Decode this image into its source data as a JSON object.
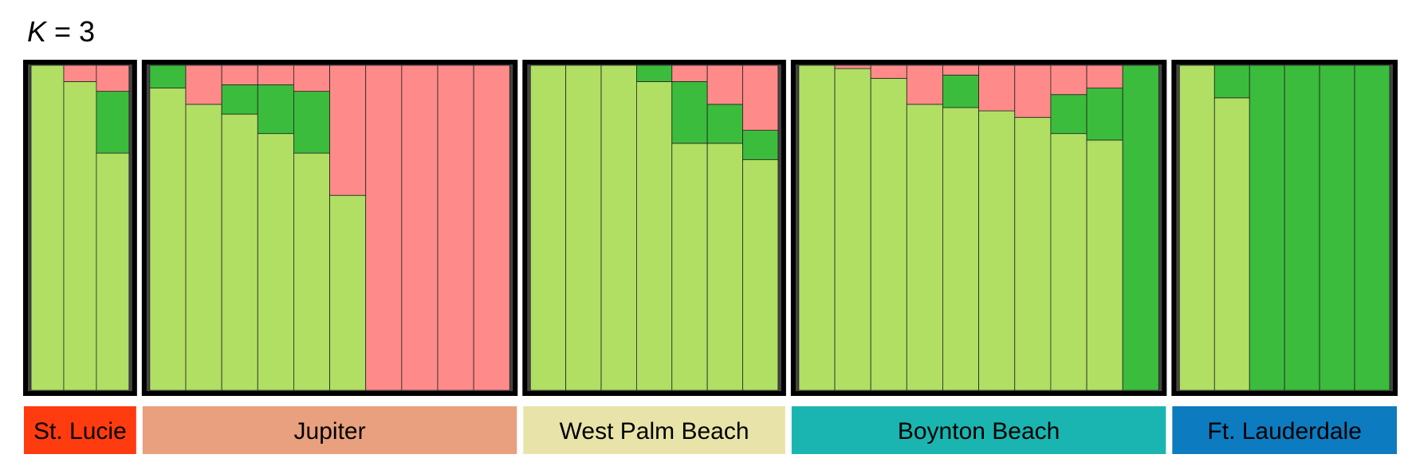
{
  "chart_data": {
    "type": "bar",
    "stacked": true,
    "title_k": "K",
    "title_rest": " = 3",
    "cluster_colors": {
      "light_green": "#b0df64",
      "pink": "#fe8b89",
      "dark_green": "#3bbc3c"
    },
    "cluster_order": [
      "light_green",
      "dark_green",
      "pink"
    ],
    "populations": [
      {
        "name": "St. Lucie",
        "color": "#ff3b0f",
        "individuals": [
          [
            1,
            0,
            0
          ],
          [
            0.95,
            0,
            0.05
          ],
          [
            0.73,
            0.19,
            0.08
          ]
        ]
      },
      {
        "name": "Jupiter",
        "color": "#e8a07e",
        "individuals": [
          [
            0.93,
            0.07,
            0
          ],
          [
            0.88,
            0,
            0.12
          ],
          [
            0.85,
            0.09,
            0.06
          ],
          [
            0.79,
            0.15,
            0.06
          ],
          [
            0.73,
            0.19,
            0.08
          ],
          [
            0.6,
            0,
            0.4
          ],
          [
            0,
            0,
            1
          ],
          [
            0,
            0,
            1
          ],
          [
            0,
            0,
            1
          ],
          [
            0,
            0,
            1
          ]
        ]
      },
      {
        "name": "West Palm Beach",
        "color": "#e8e3a8",
        "individuals": [
          [
            1,
            0,
            0
          ],
          [
            1,
            0,
            0
          ],
          [
            1,
            0,
            0
          ],
          [
            0.95,
            0.05,
            0
          ],
          [
            0.76,
            0.19,
            0.05
          ],
          [
            0.76,
            0.12,
            0.12
          ],
          [
            0.71,
            0.09,
            0.2
          ]
        ]
      },
      {
        "name": "Boynton Beach",
        "color": "#1ab5b0",
        "individuals": [
          [
            1,
            0,
            0
          ],
          [
            0.99,
            0,
            0.01
          ],
          [
            0.96,
            0,
            0.04
          ],
          [
            0.88,
            0,
            0.12
          ],
          [
            0.87,
            0.1,
            0.03
          ],
          [
            0.86,
            0,
            0.14
          ],
          [
            0.84,
            0,
            0.16
          ],
          [
            0.79,
            0.12,
            0.09
          ],
          [
            0.77,
            0.16,
            0.07
          ],
          [
            0,
            1,
            0
          ]
        ]
      },
      {
        "name": "Ft. Lauderdale",
        "color": "#0d7bbf",
        "individuals": [
          [
            1,
            0,
            0
          ],
          [
            0.9,
            0.1,
            0
          ],
          [
            0,
            1,
            0
          ],
          [
            0,
            1,
            0
          ],
          [
            0,
            1,
            0
          ],
          [
            0,
            1,
            0
          ]
        ]
      }
    ]
  }
}
